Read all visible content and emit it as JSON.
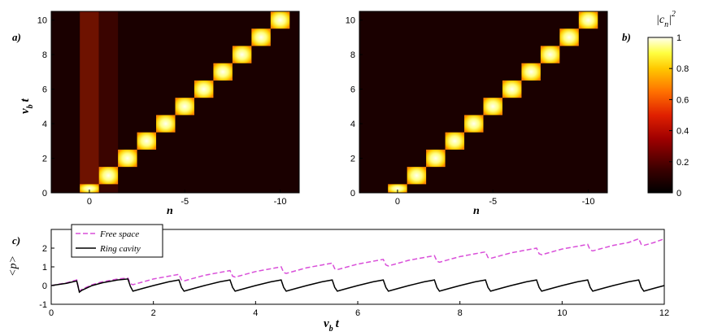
{
  "panels": {
    "a": "a)",
    "b": "b)",
    "c": "c)"
  },
  "labels": {
    "heat_ylabel_main": "v",
    "heat_ylabel_sub": "b",
    "heat_ylabel_tail": "t",
    "heat_xlabel": "n",
    "colorbar_label_pre": "|c",
    "colorbar_label_sub": "n",
    "colorbar_label_post": "|",
    "colorbar_label_sup": "2",
    "line_ylabel": "<p>",
    "line_xlabel_main": "v",
    "line_xlabel_sub": "b",
    "line_xlabel_tail": "t"
  },
  "chart_data": [
    {
      "type": "heatmap",
      "panel": "a)",
      "x_tick_labels": [
        "0",
        "-5",
        "-10"
      ],
      "x_tick_values": [
        0,
        -5,
        -10
      ],
      "xlim": [
        2,
        -11
      ],
      "ylim": [
        0,
        10.5
      ],
      "y_ticks": [
        0,
        2,
        4,
        6,
        8,
        10
      ],
      "description_values": {
        "diagonal_steps": [
          {
            "n": 0,
            "t": [
              0,
              0.5
            ],
            "value": 1.0
          },
          {
            "n": -1,
            "t": [
              0.5,
              1.5
            ],
            "value": 1.0
          },
          {
            "n": -2,
            "t": [
              1.5,
              2.5
            ],
            "value": 1.0
          },
          {
            "n": -3,
            "t": [
              2.5,
              3.5
            ],
            "value": 1.0
          },
          {
            "n": -4,
            "t": [
              3.5,
              4.5
            ],
            "value": 1.0
          },
          {
            "n": -5,
            "t": [
              4.5,
              5.5
            ],
            "value": 1.0
          },
          {
            "n": -6,
            "t": [
              5.5,
              6.5
            ],
            "value": 1.0
          },
          {
            "n": -7,
            "t": [
              6.5,
              7.5
            ],
            "value": 1.0
          },
          {
            "n": -8,
            "t": [
              7.5,
              8.5
            ],
            "value": 1.0
          },
          {
            "n": -9,
            "t": [
              8.5,
              9.5
            ],
            "value": 1.0
          },
          {
            "n": -10,
            "t": [
              9.5,
              10.5
            ],
            "value": 1.0
          }
        ],
        "background_column_n0": 0.22,
        "background_column_n_minus1": 0.12
      }
    },
    {
      "type": "heatmap",
      "panel": "b)",
      "x_tick_labels": [
        "0",
        "-5",
        "-10"
      ],
      "x_tick_values": [
        0,
        -5,
        -10
      ],
      "xlim": [
        2,
        -11
      ],
      "ylim": [
        0,
        10.5
      ],
      "y_ticks": [
        0,
        2,
        4,
        6,
        8,
        10
      ],
      "description_values": {
        "diagonal_steps": [
          {
            "n": 0,
            "t": [
              0,
              0.5
            ],
            "value": 1.0
          },
          {
            "n": -1,
            "t": [
              0.5,
              1.5
            ],
            "value": 1.0
          },
          {
            "n": -2,
            "t": [
              1.5,
              2.5
            ],
            "value": 1.0
          },
          {
            "n": -3,
            "t": [
              2.5,
              3.5
            ],
            "value": 1.0
          },
          {
            "n": -4,
            "t": [
              3.5,
              4.5
            ],
            "value": 1.0
          },
          {
            "n": -5,
            "t": [
              4.5,
              5.5
            ],
            "value": 1.0
          },
          {
            "n": -6,
            "t": [
              5.5,
              6.5
            ],
            "value": 1.0
          },
          {
            "n": -7,
            "t": [
              6.5,
              7.5
            ],
            "value": 1.0
          },
          {
            "n": -8,
            "t": [
              7.5,
              8.5
            ],
            "value": 1.0
          },
          {
            "n": -9,
            "t": [
              8.5,
              9.5
            ],
            "value": 1.0
          },
          {
            "n": -10,
            "t": [
              9.5,
              10.5
            ],
            "value": 1.0
          }
        ]
      }
    },
    {
      "type": "colorbar",
      "ticks": [
        0,
        0.2,
        0.4,
        0.6,
        0.8,
        1
      ],
      "tick_labels": [
        "0",
        "0.2",
        "0.4",
        "0.6",
        "0.8",
        "1"
      ],
      "range": [
        0,
        1
      ],
      "colormap": "hot"
    },
    {
      "type": "line",
      "panel": "c)",
      "xlim": [
        0,
        12
      ],
      "ylim": [
        -1,
        3
      ],
      "x_ticks": [
        0,
        2,
        4,
        6,
        8,
        10,
        12
      ],
      "y_ticks": [
        -1,
        0,
        1,
        2
      ],
      "legend_position": "top-left",
      "series": [
        {
          "name": "Free space",
          "color": "#d94fd9",
          "style": "dashed",
          "x": [
            0,
            0.3,
            0.5,
            0.55,
            0.6,
            0.8,
            1.0,
            1.3,
            1.5,
            1.55,
            1.6,
            1.8,
            2.0,
            2.3,
            2.5,
            2.55,
            2.6,
            2.8,
            3.0,
            3.3,
            3.5,
            3.55,
            3.6,
            3.8,
            4.0,
            4.3,
            4.5,
            4.55,
            4.6,
            4.8,
            5.0,
            5.3,
            5.5,
            5.55,
            5.6,
            5.8,
            6.0,
            6.3,
            6.5,
            6.55,
            6.6,
            6.8,
            7.0,
            7.3,
            7.5,
            7.55,
            7.6,
            7.8,
            8.0,
            8.3,
            8.5,
            8.55,
            8.6,
            8.8,
            9.0,
            9.3,
            9.5,
            9.55,
            9.6,
            9.8,
            10.0,
            10.3,
            10.5,
            10.55,
            10.6,
            10.8,
            11.0,
            11.3,
            11.5,
            11.55,
            11.6,
            11.8,
            12.0
          ],
          "y": [
            0.0,
            0.15,
            0.3,
            -0.3,
            -0.2,
            0.05,
            0.2,
            0.35,
            0.4,
            0.1,
            0.05,
            0.2,
            0.35,
            0.5,
            0.6,
            0.3,
            0.25,
            0.4,
            0.55,
            0.7,
            0.8,
            0.5,
            0.45,
            0.6,
            0.75,
            0.9,
            1.0,
            0.7,
            0.65,
            0.8,
            0.95,
            1.1,
            1.2,
            0.9,
            0.85,
            1.0,
            1.15,
            1.3,
            1.4,
            1.1,
            1.05,
            1.2,
            1.35,
            1.5,
            1.6,
            1.3,
            1.25,
            1.4,
            1.55,
            1.7,
            1.8,
            1.5,
            1.45,
            1.6,
            1.75,
            1.9,
            2.0,
            1.7,
            1.65,
            1.8,
            1.95,
            2.1,
            2.2,
            1.9,
            1.85,
            2.0,
            2.15,
            2.3,
            2.5,
            2.2,
            2.15,
            2.3,
            2.5
          ]
        },
        {
          "name": "Ring cavity",
          "color": "#000000",
          "style": "solid",
          "x": [
            0,
            0.3,
            0.5,
            0.55,
            0.6,
            0.8,
            1.0,
            1.3,
            1.5,
            1.55,
            1.6,
            1.8,
            2.0,
            2.3,
            2.5,
            2.55,
            2.6,
            2.8,
            3.0,
            3.3,
            3.5,
            3.55,
            3.6,
            3.8,
            4.0,
            4.3,
            4.5,
            4.55,
            4.6,
            4.8,
            5.0,
            5.3,
            5.5,
            5.55,
            5.6,
            5.8,
            6.0,
            6.3,
            6.5,
            6.55,
            6.6,
            6.8,
            7.0,
            7.3,
            7.5,
            7.55,
            7.6,
            7.8,
            8.0,
            8.3,
            8.5,
            8.55,
            8.6,
            8.8,
            9.0,
            9.3,
            9.5,
            9.55,
            9.6,
            9.8,
            10.0,
            10.3,
            10.5,
            10.55,
            10.6,
            10.8,
            11.0,
            11.3,
            11.5,
            11.55,
            11.6,
            11.8,
            12.0
          ],
          "y": [
            0.0,
            0.12,
            0.25,
            -0.35,
            -0.25,
            0.0,
            0.15,
            0.3,
            0.35,
            -0.05,
            -0.3,
            -0.15,
            0.0,
            0.2,
            0.3,
            -0.1,
            -0.3,
            -0.15,
            0.0,
            0.2,
            0.3,
            -0.1,
            -0.3,
            -0.15,
            0.0,
            0.2,
            0.3,
            -0.1,
            -0.3,
            -0.15,
            0.0,
            0.2,
            0.3,
            -0.1,
            -0.3,
            -0.15,
            0.0,
            0.2,
            0.3,
            -0.1,
            -0.3,
            -0.15,
            0.0,
            0.2,
            0.3,
            -0.1,
            -0.3,
            -0.15,
            0.0,
            0.2,
            0.3,
            -0.1,
            -0.3,
            -0.15,
            0.0,
            0.2,
            0.3,
            -0.1,
            -0.3,
            -0.15,
            0.0,
            0.2,
            0.3,
            -0.1,
            -0.3,
            -0.15,
            0.0,
            0.2,
            0.3,
            -0.1,
            -0.3,
            -0.15,
            0.0
          ]
        }
      ]
    }
  ]
}
